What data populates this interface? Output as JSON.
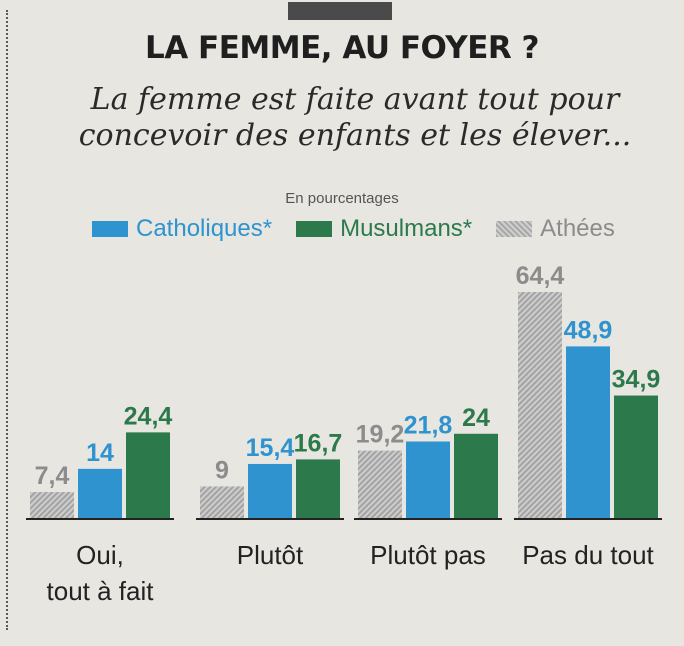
{
  "title": "LA FEMME, AU FOYER ?",
  "subtitle_lines": [
    "La femme est faite avant tout pour",
    "concevoir des enfants et les élever..."
  ],
  "units_note": "En pourcentages",
  "legend": [
    {
      "label": "Catholiques*",
      "color": "#2e93cf"
    },
    {
      "label": "Musulmans*",
      "color": "#2c7a4b"
    },
    {
      "label": "Athées",
      "color": "#b5b5b5"
    }
  ],
  "chart_data": {
    "type": "bar",
    "title": "LA FEMME, AU FOYER ?",
    "categories": [
      "Oui, tout à fait",
      "Plutôt",
      "Plutôt pas",
      "Pas du tout"
    ],
    "category_lines": [
      [
        "Oui,",
        "tout à fait"
      ],
      [
        "Plutôt"
      ],
      [
        "Plutôt pas"
      ],
      [
        "Pas du tout"
      ]
    ],
    "series": [
      {
        "name": "Athées",
        "values": [
          7.4,
          9,
          19.2,
          64.4
        ],
        "labels": [
          "7,4",
          "9",
          "19,2",
          "64,4"
        ],
        "color": "#b5b5b5",
        "label_color": "#8c8c8c"
      },
      {
        "name": "Catholiques*",
        "values": [
          14,
          15.4,
          21.8,
          48.9
        ],
        "labels": [
          "14",
          "15,4",
          "21,8",
          "48,9"
        ],
        "color": "#2e93cf",
        "label_color": "#2e93cf"
      },
      {
        "name": "Musulmans*",
        "values": [
          24.4,
          16.7,
          24,
          34.9
        ],
        "labels": [
          "24,4",
          "16,7",
          "24",
          "34,9"
        ],
        "color": "#2c7a4b",
        "label_color": "#2c7a4b"
      }
    ],
    "ylim": [
      0,
      64.4
    ],
    "grid": false,
    "legend_position": "top"
  }
}
